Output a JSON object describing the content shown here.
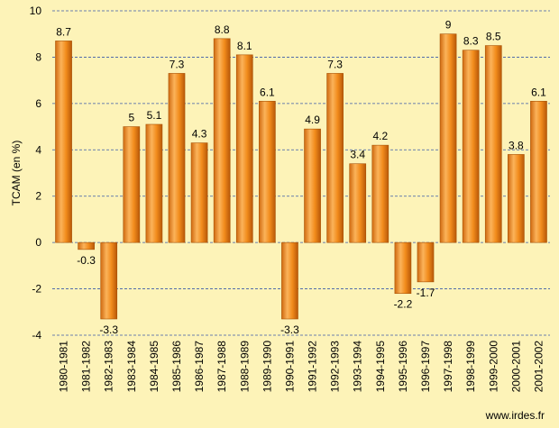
{
  "chart_data": {
    "type": "bar",
    "title": "",
    "xlabel": "",
    "ylabel": "TCAM (en %)",
    "ylim": [
      -4,
      10
    ],
    "yticks": [
      -4,
      -2,
      0,
      2,
      4,
      6,
      8,
      10
    ],
    "grid": true,
    "categories": [
      "1980-1981",
      "1981-1982",
      "1982-1983",
      "1983-1984",
      "1984-1985",
      "1985-1986",
      "1986-1987",
      "1987-1988",
      "1988-1989",
      "1989-1990",
      "1990-1991",
      "1991-1992",
      "1992-1993",
      "1993-1994",
      "1994-1995",
      "1995-1996",
      "1996-1997",
      "1997-1998",
      "1998-1999",
      "1999-2000",
      "2000-2001",
      "2001-2002"
    ],
    "values": [
      8.7,
      -0.3,
      -3.3,
      5,
      5.1,
      7.3,
      4.3,
      8.8,
      8.1,
      6.1,
      -3.3,
      4.9,
      7.3,
      3.4,
      4.2,
      -2.2,
      -1.7,
      9,
      8.3,
      8.5,
      3.8,
      6.1
    ],
    "colors": {
      "bar": "#f28c1c",
      "bar_light": "#fbb35a",
      "bar_dark": "#c8620a",
      "background": "#fdf3b8",
      "grid": "#3b5aa8"
    }
  },
  "source_text": "www.irdes.fr"
}
